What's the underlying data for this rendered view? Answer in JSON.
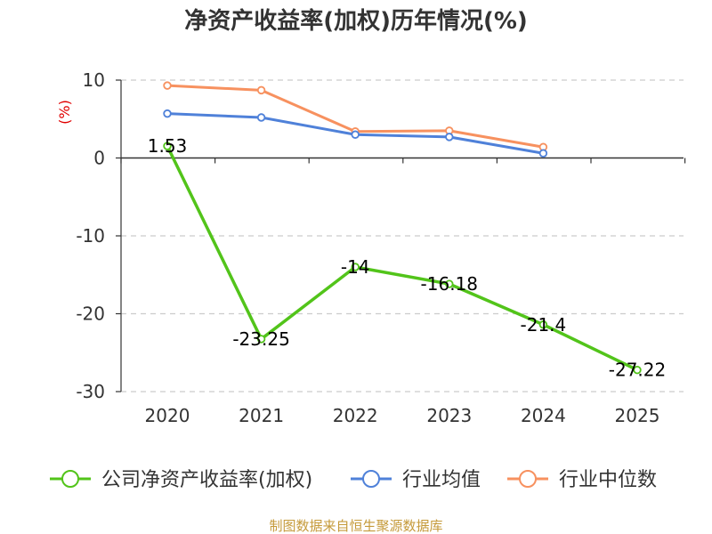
{
  "colors": {
    "company": "#52c41a",
    "industry_avg": "#4f81d9",
    "industry_median": "#f7915f",
    "unit": "#e00000",
    "source": "#c59a3a",
    "grid": "#cccccc",
    "axis": "#333333"
  },
  "source_text": "制图数据来自恒生聚源数据库",
  "chart_data": {
    "type": "line",
    "title": "净资产收益率(加权)历年情况(%)",
    "ylabel": "(%)",
    "xlabel": "",
    "categories": [
      "2020",
      "2021",
      "2022",
      "2023",
      "2024",
      "2025"
    ],
    "ylim": [
      -30,
      10
    ],
    "yticks": [
      10,
      0,
      -10,
      -20,
      -30
    ],
    "ytick_labels": [
      "10",
      "0",
      "-10",
      "-20",
      "-30"
    ],
    "grid": true,
    "legend_position": "bottom",
    "series": [
      {
        "name": "公司净资产收益率(加权)",
        "color_key": "company",
        "values": [
          1.53,
          -23.25,
          -14,
          -16.18,
          -21.4,
          -27.22
        ],
        "labels": [
          "1.53",
          "-23.25",
          "-14",
          "-16.18",
          "-21.4",
          "-27.22"
        ]
      },
      {
        "name": "行业均值",
        "color_key": "industry_avg",
        "values": [
          5.7,
          5.2,
          3.0,
          2.7,
          0.6,
          null
        ]
      },
      {
        "name": "行业中位数",
        "color_key": "industry_median",
        "values": [
          9.3,
          8.7,
          3.4,
          3.5,
          1.4,
          null
        ]
      }
    ]
  }
}
